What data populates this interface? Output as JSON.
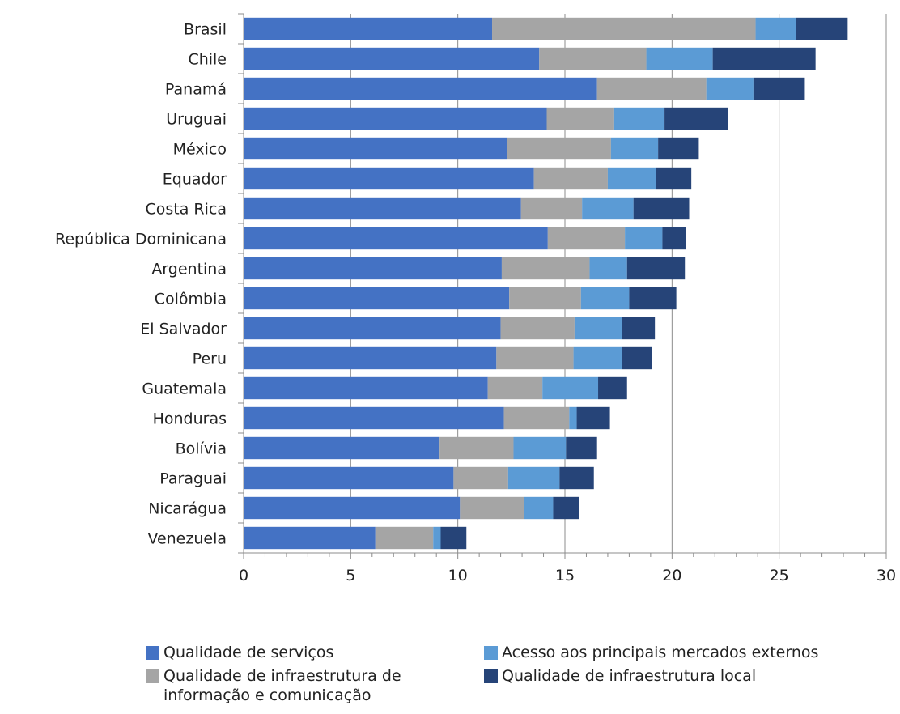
{
  "chart_data": {
    "type": "bar",
    "orientation": "horizontal",
    "stacked": true,
    "categories": [
      "Brasil",
      "Chile",
      "Panamá",
      "Uruguai",
      "México",
      "Equador",
      "Costa Rica",
      "República Dominicana",
      "Argentina",
      "Colômbia",
      "El Salvador",
      "Peru",
      "Guatemala",
      "Honduras",
      "Bolívia",
      "Paraguai",
      "Nicarágua",
      "Venezuela"
    ],
    "series": [
      {
        "name": "Qualidade de serviços",
        "color": "#4472C4",
        "values": [
          11.6,
          13.8,
          16.5,
          14.15,
          12.3,
          13.55,
          12.95,
          14.2,
          12.05,
          12.4,
          12.0,
          11.8,
          11.4,
          12.15,
          9.15,
          9.8,
          10.1,
          6.15
        ]
      },
      {
        "name": "Qualidade de infraestrutura de informação e comunicação",
        "color": "#A5A5A5",
        "values": [
          12.3,
          5.0,
          5.1,
          3.15,
          4.85,
          3.45,
          2.85,
          3.6,
          4.1,
          3.35,
          3.45,
          3.6,
          2.55,
          3.05,
          3.45,
          2.55,
          3.0,
          2.7
        ]
      },
      {
        "name": "Acesso aos principais mercados externos",
        "color": "#5B9BD5",
        "values": [
          1.9,
          3.1,
          2.2,
          2.35,
          2.2,
          2.25,
          2.4,
          1.75,
          1.75,
          2.25,
          2.2,
          2.25,
          2.6,
          0.35,
          2.45,
          2.4,
          1.35,
          0.35
        ]
      },
      {
        "name": "Qualidade de infraestrutura local",
        "color": "#264478",
        "values": [
          2.4,
          4.8,
          2.4,
          2.95,
          1.9,
          1.65,
          2.6,
          1.1,
          2.7,
          2.2,
          1.55,
          1.4,
          1.35,
          1.55,
          1.45,
          1.6,
          1.2,
          1.2
        ]
      }
    ],
    "xlim": [
      0,
      30
    ],
    "xticks": [
      "0",
      "5",
      "10",
      "15",
      "20",
      "25",
      "30"
    ],
    "grid": "vertical major gridlines",
    "legend_position": "bottom"
  }
}
